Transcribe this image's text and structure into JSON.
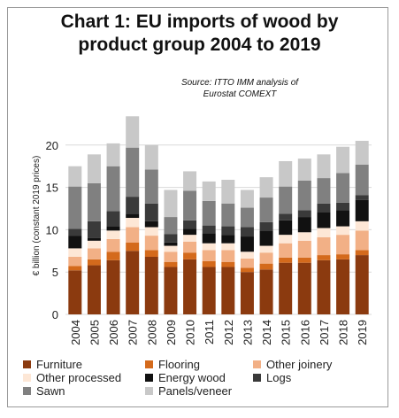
{
  "header": {
    "title_line1": "Chart 1: EU imports of wood by",
    "title_line2": "product group 2004 to 2019",
    "source_line1": "Source: ITTO IMM analysis of",
    "source_line2": "Eurostat COMEXT"
  },
  "chart_data": {
    "type": "bar",
    "stacked": true,
    "title": "Chart 1: EU imports of wood by product group 2004 to 2019",
    "ylabel": "€ billion (constant 2019 prices)",
    "xlabel": "",
    "ylim": [
      0,
      25
    ],
    "yticks": [
      0,
      5,
      10,
      15,
      20
    ],
    "grid": true,
    "legend_position": "bottom",
    "categories": [
      "2004",
      "2005",
      "2006",
      "2007",
      "2008",
      "2009",
      "2010",
      "2011",
      "2012",
      "2013",
      "2014",
      "2015",
      "2016",
      "2017",
      "2018",
      "2019"
    ],
    "series": [
      {
        "name": "Furniture",
        "color": "#8b3a0f",
        "values": [
          5.2,
          5.8,
          6.4,
          7.5,
          6.8,
          5.6,
          6.5,
          5.6,
          5.6,
          5.0,
          5.3,
          6.1,
          6.1,
          6.4,
          6.5,
          7.0
        ]
      },
      {
        "name": "Flooring",
        "color": "#d46a1c",
        "values": [
          0.5,
          0.7,
          1.0,
          1.0,
          0.8,
          0.6,
          0.8,
          0.7,
          0.6,
          0.5,
          0.7,
          0.6,
          0.6,
          0.6,
          0.6,
          0.6
        ]
      },
      {
        "name": "Other joinery",
        "color": "#f2b086",
        "values": [
          1.1,
          1.3,
          1.5,
          1.8,
          1.7,
          1.2,
          1.3,
          1.3,
          1.4,
          1.1,
          1.3,
          1.7,
          2.0,
          2.1,
          2.3,
          2.3
        ]
      },
      {
        "name": "Other processed",
        "color": "#fde7d6",
        "values": [
          1.0,
          0.9,
          1.0,
          1.1,
          1.0,
          0.7,
          0.8,
          0.8,
          0.8,
          0.8,
          0.8,
          1.0,
          1.0,
          1.1,
          1.0,
          1.1
        ]
      },
      {
        "name": "Energy wood",
        "color": "#111111",
        "values": [
          1.5,
          0.3,
          0.5,
          0.5,
          0.7,
          0.4,
          0.7,
          1.2,
          1.0,
          1.8,
          1.8,
          1.7,
          1.8,
          1.9,
          1.9,
          2.5
        ]
      },
      {
        "name": "Logs",
        "color": "#3a3a3a",
        "values": [
          0.8,
          2.0,
          1.8,
          2.0,
          2.1,
          1.0,
          1.0,
          0.9,
          1.0,
          1.1,
          1.0,
          0.8,
          0.8,
          1.0,
          0.9,
          0.6
        ]
      },
      {
        "name": "Sawn",
        "color": "#808080",
        "values": [
          5.0,
          4.5,
          5.3,
          5.8,
          4.0,
          2.0,
          3.5,
          2.9,
          2.7,
          2.3,
          2.9,
          3.2,
          3.5,
          3.0,
          3.5,
          3.6
        ]
      },
      {
        "name": "Panels/veneer",
        "color": "#c8c8c8",
        "values": [
          2.4,
          3.4,
          2.7,
          3.7,
          2.9,
          3.2,
          2.3,
          2.3,
          2.8,
          2.1,
          2.4,
          3.0,
          2.6,
          2.8,
          3.1,
          2.8
        ]
      }
    ]
  }
}
